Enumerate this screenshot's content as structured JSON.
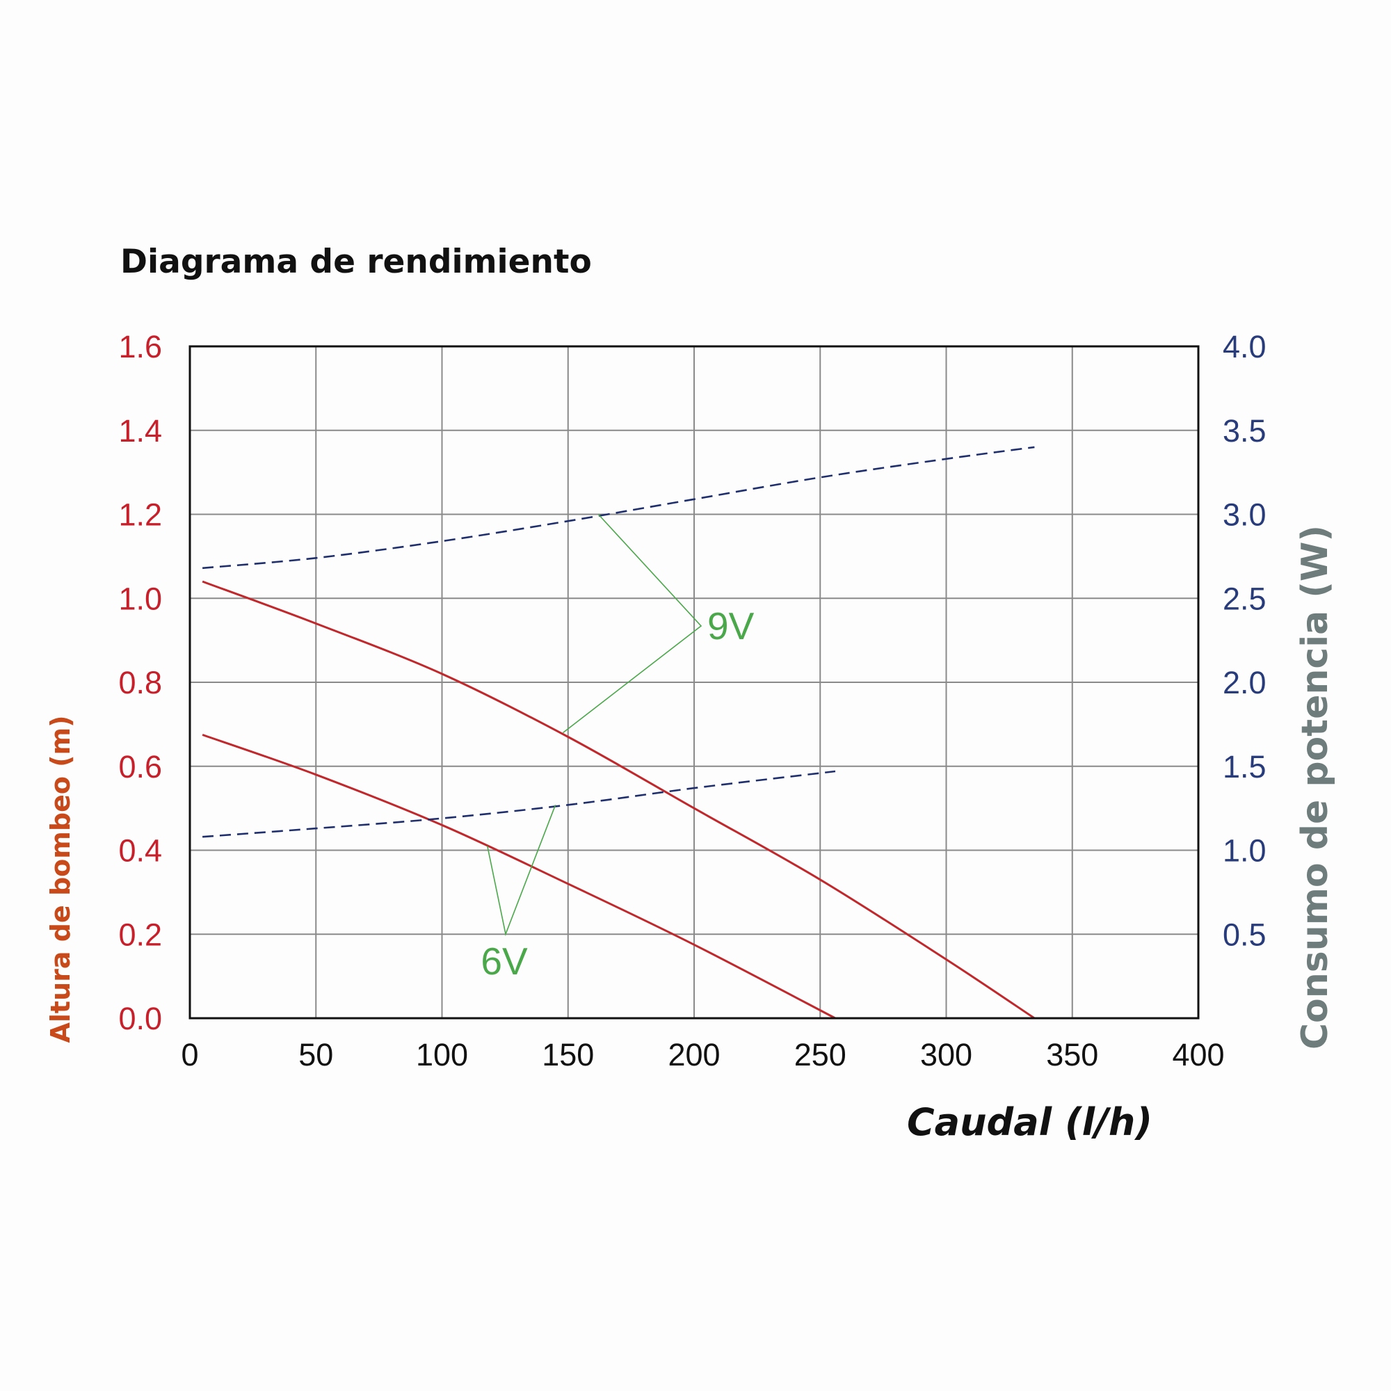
{
  "colors": {
    "left_axis": "#c8202a",
    "right_axis": "#283b7a",
    "left_label": "#c84a1a",
    "right_label": "#6e7c7c",
    "height_curve": "#c0282c",
    "power_curve": "#1f2f6e",
    "annotation": "#4aa84a",
    "grid": "#8a8a8a",
    "frame": "#111111"
  },
  "chart_data": {
    "type": "line",
    "title": "Diagrama de rendimiento",
    "xlabel": "Caudal (l/h)",
    "ylabel_left": "Altura de bombeo (m)",
    "ylabel_right": "Consumo de potencia (W)",
    "xlim": [
      0,
      400
    ],
    "ylim_left": [
      0,
      1.6
    ],
    "ylim_right": [
      0,
      4.0
    ],
    "x_ticks": [
      "0",
      "50",
      "100",
      "150",
      "200",
      "250",
      "300",
      "350",
      "400"
    ],
    "y_left_ticks": [
      "0.0",
      "0.2",
      "0.4",
      "0.6",
      "0.8",
      "1.0",
      "1.2",
      "1.4",
      "1.6"
    ],
    "y_right_ticks": [
      "0.5",
      "1.0",
      "1.5",
      "2.0",
      "2.5",
      "3.0",
      "3.5",
      "4.0"
    ],
    "grid": true,
    "series": [
      {
        "name": "9V",
        "kind": "height",
        "axis": "left",
        "style": "solid",
        "x": [
          5,
          50,
          100,
          150,
          200,
          250,
          300,
          335
        ],
        "y": [
          1.04,
          0.94,
          0.82,
          0.67,
          0.5,
          0.33,
          0.14,
          0.0
        ]
      },
      {
        "name": "6V",
        "kind": "height",
        "axis": "left",
        "style": "solid",
        "x": [
          5,
          50,
          100,
          150,
          200,
          256
        ],
        "y": [
          0.675,
          0.58,
          0.46,
          0.32,
          0.175,
          0.0
        ]
      },
      {
        "name": "9V",
        "kind": "power",
        "axis": "right",
        "style": "dashed",
        "x": [
          5,
          50,
          100,
          150,
          200,
          250,
          300,
          335
        ],
        "y": [
          2.68,
          2.74,
          2.84,
          2.96,
          3.09,
          3.22,
          3.33,
          3.4
        ]
      },
      {
        "name": "6V",
        "kind": "power",
        "axis": "right",
        "style": "dashed",
        "x": [
          5,
          50,
          100,
          150,
          200,
          256
        ],
        "y": [
          1.08,
          1.13,
          1.19,
          1.27,
          1.37,
          1.47
        ]
      }
    ],
    "annotations": [
      {
        "text": "9V",
        "points_to": [
          {
            "x": 162,
            "y_right": 3.0
          },
          {
            "x": 148,
            "y_left": 0.68
          }
        ]
      },
      {
        "text": "6V",
        "points_to": [
          {
            "x": 118,
            "y_left": 0.41
          },
          {
            "x": 145,
            "y_right": 1.27
          }
        ]
      }
    ]
  }
}
